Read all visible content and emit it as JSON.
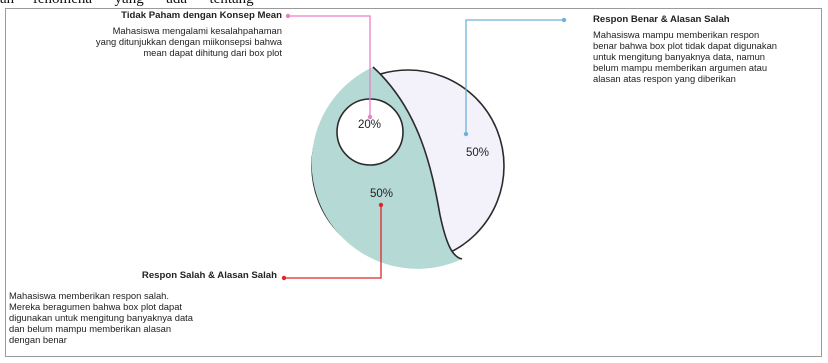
{
  "top_text": "an     fenomena      yang      ada      tentang",
  "colors": {
    "teal": "#b5d9d5",
    "lavender": "#f3f2fa",
    "pink": "#e77fc9",
    "blue": "#6fb2d8",
    "red": "#e0262a"
  },
  "chart_data": {
    "type": "pie",
    "values": [
      20,
      50,
      50
    ],
    "slices": [
      {
        "label": "20%",
        "value": 20,
        "series": "Tidak Paham dengan Konsep Mean"
      },
      {
        "label": "50%",
        "value": 50,
        "series": "Respon Benar & Alasan Salah"
      },
      {
        "label": "50%",
        "value": 50,
        "series": "Respon Salah & Alasan Salah"
      }
    ]
  },
  "callouts": {
    "top_left": {
      "title": "Tidak Paham dengan Konsep Mean",
      "body": "Mahasiswa mengalami kesalahpahaman\nyang ditunjukkan dengan miikonsepsi bahwa\nmean dapat dihitung dari box plot"
    },
    "top_right": {
      "title": "Respon Benar & Alasan Salah",
      "body": "Mahasiswa mampu memberikan respon\nbenar bahwa box plot tidak dapat digunakan\nuntuk mengitung banyaknya data, namun\nbelum mampu memberikan argumen atau\nalasan atas respon yang diberikan"
    },
    "bottom_left": {
      "title": "Respon Salah & Alasan Salah",
      "body": "Mahasiswa memberikan respon salah.\nMereka beragumen bahwa box plot dapat\ndigunakan untuk mengitung banyaknya data\ndan belum mampu memberikan alasan\ndengan benar"
    }
  }
}
